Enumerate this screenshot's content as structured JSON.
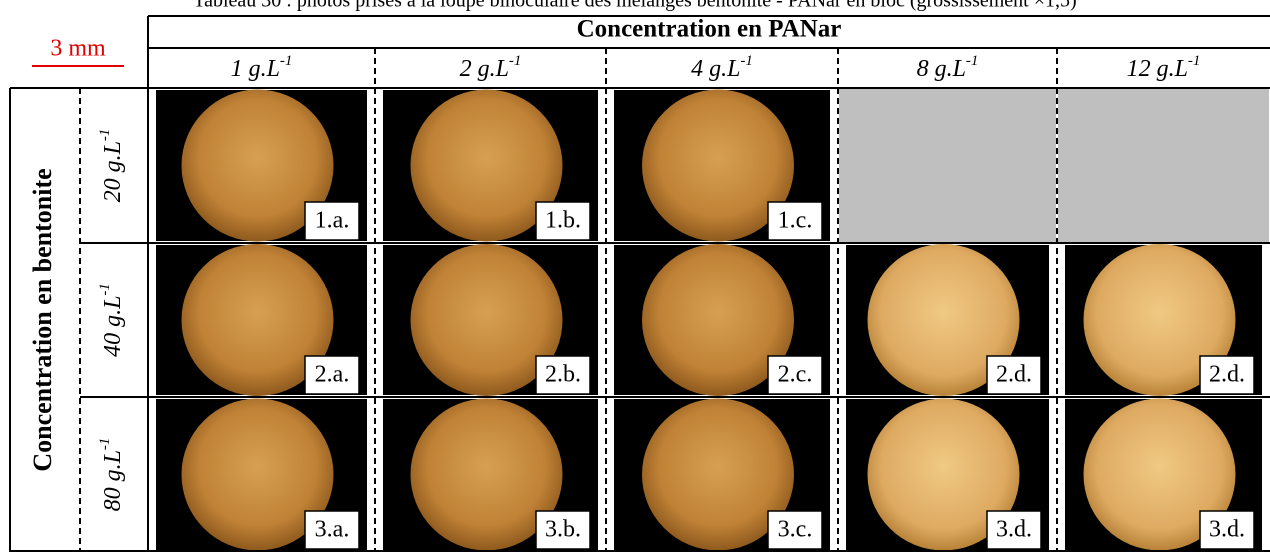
{
  "caption": "Tableau 30 : photos prises à la loupe binoculaire des mélanges bentonite - PANar en bloc (grossissement ×1,5)",
  "scale_bar": "3 mm",
  "column_header": "Concentration en PANar",
  "columns": [
    {
      "text": "1 g.L",
      "sup": "-1"
    },
    {
      "text": "2 g.L",
      "sup": "-1"
    },
    {
      "text": "4 g.L",
      "sup": "-1"
    },
    {
      "text": "8 g.L",
      "sup": "-1"
    },
    {
      "text": "12 g.L",
      "sup": "-1"
    }
  ],
  "row_header": "Concentration en bentonite",
  "rows": [
    {
      "text": "20 g.L",
      "sup": "-1",
      "cells": [
        "1.a.",
        "1.b.",
        "1.c.",
        null,
        null
      ]
    },
    {
      "text": "40 g.L",
      "sup": "-1",
      "cells": [
        "2.a.",
        "2.b.",
        "2.c.",
        "2.d.",
        "2.d."
      ]
    },
    {
      "text": "80 g.L",
      "sup": "-1",
      "cells": [
        "3.a.",
        "3.b.",
        "3.c.",
        "3.d.",
        "3.d."
      ]
    }
  ]
}
